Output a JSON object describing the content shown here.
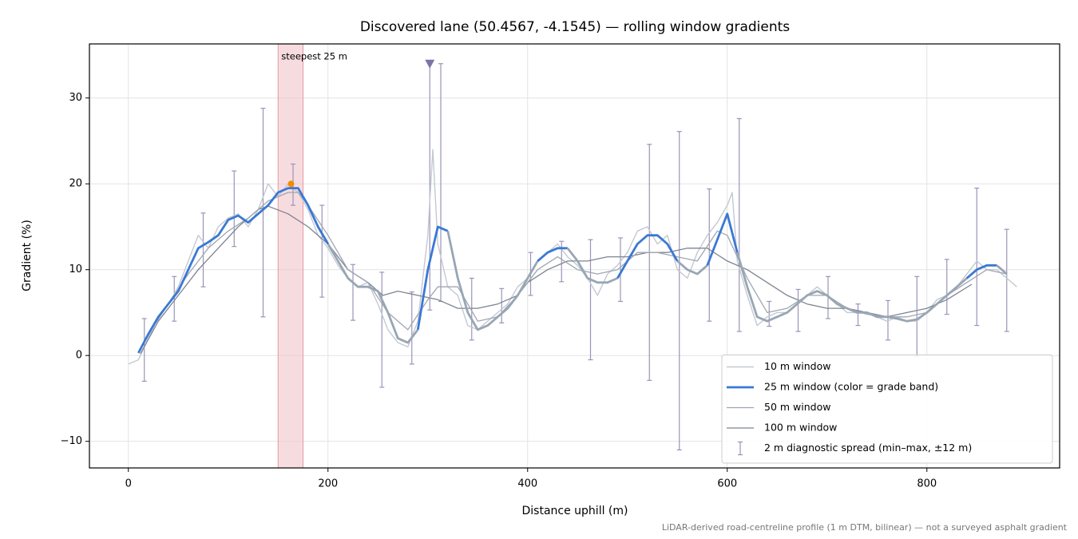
{
  "chart_data": {
    "type": "line",
    "title": "Discovered lane (50.4567, -4.1545) — rolling window gradients",
    "x_label": "Distance uphill (m)",
    "y_label": "Gradient (%)",
    "footnote": "LiDAR-derived road-centreline profile (1 m DTM, bilinear) — not a surveyed asphalt gradient",
    "xlim": [
      -39,
      933
    ],
    "ylim": [
      -13.1,
      36.3
    ],
    "xticks": [
      0,
      200,
      400,
      600,
      800
    ],
    "yticks": [
      {
        "value": -10,
        "label": "−10"
      },
      0,
      10,
      20,
      30
    ],
    "grid": true,
    "legend": "lower right",
    "highlight": {
      "xlim": [
        150,
        175
      ],
      "label": "steepest 25 m",
      "color": "#f2c4c9",
      "label_color": "#c0283a"
    },
    "steepest_point": {
      "x": 163,
      "y": 20,
      "color": "#f08c00"
    },
    "peak_marker": {
      "x": 302,
      "y": 34,
      "color": "#7e74a8"
    },
    "series": [
      {
        "name": "10 m window",
        "color": "#c3c9d2",
        "x": [
          0,
          10,
          20,
          30,
          40,
          50,
          60,
          70,
          80,
          90,
          100,
          110,
          120,
          130,
          140,
          150,
          160,
          170,
          180,
          190,
          200,
          210,
          220,
          230,
          240,
          250,
          260,
          270,
          280,
          290,
          300,
          305,
          310,
          320,
          330,
          340,
          350,
          360,
          370,
          380,
          390,
          400,
          410,
          420,
          430,
          440,
          450,
          460,
          470,
          480,
          490,
          500,
          510,
          520,
          530,
          540,
          550,
          560,
          570,
          580,
          590,
          600,
          605,
          610,
          620,
          630,
          640,
          650,
          660,
          670,
          680,
          690,
          700,
          710,
          720,
          730,
          740,
          750,
          760,
          770,
          780,
          790,
          800,
          810,
          820,
          830,
          840,
          850,
          860,
          870,
          880,
          890
        ],
        "values": [
          -1,
          -0.5,
          2,
          4.5,
          6,
          8,
          11,
          14,
          12.5,
          15,
          16,
          16.5,
          15,
          17,
          20,
          18.5,
          20,
          19,
          17,
          14,
          12.5,
          10.5,
          9,
          8,
          8.5,
          6,
          3,
          1.5,
          1,
          4,
          14,
          24,
          13,
          8,
          7,
          3.5,
          3,
          4,
          5,
          6,
          8,
          9,
          11,
          12,
          13,
          11.5,
          10.5,
          9,
          7,
          9.5,
          10.5,
          12,
          14.5,
          15,
          13,
          14,
          10,
          9,
          12,
          14,
          15.5,
          17.5,
          19,
          11,
          7,
          3.5,
          4.5,
          5,
          5,
          6,
          7,
          8,
          7,
          6,
          5,
          5,
          5,
          4.5,
          4,
          4.5,
          4,
          4,
          5,
          6.5,
          7,
          8,
          9.5,
          11,
          10,
          10,
          9,
          8
        ]
      },
      {
        "name": "25 m window (color = grade band)",
        "color": "#3a78d4",
        "x": [
          10,
          20,
          30,
          40,
          50,
          60,
          70,
          80,
          90,
          100,
          110,
          120,
          130,
          140,
          150,
          160,
          170,
          180,
          190,
          200,
          210,
          220,
          230,
          240,
          250,
          260,
          270,
          280,
          290,
          300,
          310,
          320,
          330,
          340,
          350,
          360,
          370,
          380,
          390,
          400,
          410,
          420,
          430,
          440,
          450,
          460,
          470,
          480,
          490,
          500,
          510,
          520,
          530,
          540,
          550,
          560,
          570,
          580,
          590,
          600,
          610,
          620,
          630,
          640,
          650,
          660,
          670,
          680,
          690,
          700,
          710,
          720,
          730,
          740,
          750,
          760,
          770,
          780,
          790,
          800,
          810,
          820,
          830,
          840,
          850,
          860,
          870,
          880
        ],
        "values": [
          0.3,
          2.5,
          4.5,
          6,
          7.5,
          10,
          12.5,
          13.2,
          14,
          15.8,
          16.3,
          15.5,
          16.5,
          17.5,
          19,
          19.5,
          19.5,
          17.5,
          15,
          13,
          11,
          9,
          8,
          8,
          7.5,
          5,
          2,
          1.5,
          3,
          10,
          15,
          14.5,
          9,
          5,
          3,
          3.5,
          4.5,
          5.5,
          7,
          9,
          11,
          12,
          12.5,
          12.5,
          11,
          9,
          8.5,
          8.5,
          9,
          11,
          13,
          14,
          14,
          13,
          11,
          10,
          9.5,
          10.5,
          13.5,
          16.5,
          12,
          8,
          4.5,
          4,
          4.5,
          5,
          6,
          7,
          7.5,
          7,
          6,
          5.5,
          5,
          5,
          4.5,
          4.5,
          4.3,
          4,
          4.2,
          5,
          6,
          7,
          8,
          9,
          10,
          10.5,
          10.5,
          9.5
        ],
        "colors": [
          "#3a78d4",
          "#3a78d4",
          "#3a78d4",
          "#3a78d4",
          "#3a78d4",
          "#3a78d4",
          "#3a78d4",
          "#3a78d4",
          "#3a78d4",
          "#3a78d4",
          "#3a78d4",
          "#3a78d4",
          "#3a78d4",
          "#3a78d4",
          "#3a78d4",
          "#3a78d4",
          "#3a78d4",
          "#3a78d4",
          "#3a78d4",
          "#3a78d4",
          "#98a6b4",
          "#98a6b4",
          "#98a6b4",
          "#98a6b4",
          "#98a6b4",
          "#98a6b4",
          "#98a6b4",
          "#98a6b4",
          "#98a6b4",
          "#3a78d4",
          "#3a78d4",
          "#3a78d4",
          "#98a6b4",
          "#98a6b4",
          "#98a6b4",
          "#98a6b4",
          "#98a6b4",
          "#98a6b4",
          "#98a6b4",
          "#98a6b4",
          "#98a6b4",
          "#3a78d4",
          "#3a78d4",
          "#3a78d4",
          "#98a6b4",
          "#98a6b4",
          "#98a6b4",
          "#98a6b4",
          "#98a6b4",
          "#3a78d4",
          "#3a78d4",
          "#3a78d4",
          "#3a78d4",
          "#3a78d4",
          "#3a78d4",
          "#98a6b4",
          "#98a6b4",
          "#98a6b4",
          "#3a78d4",
          "#3a78d4",
          "#3a78d4",
          "#98a6b4",
          "#98a6b4",
          "#98a6b4",
          "#98a6b4",
          "#98a6b4",
          "#98a6b4",
          "#98a6b4",
          "#98a6b4",
          "#98a6b4",
          "#98a6b4",
          "#98a6b4",
          "#98a6b4",
          "#98a6b4",
          "#98a6b4",
          "#98a6b4",
          "#98a6b4",
          "#98a6b4",
          "#98a6b4",
          "#98a6b4",
          "#98a6b4",
          "#98a6b4",
          "#98a6b4",
          "#98a6b4",
          "#3a78d4",
          "#3a78d4",
          "#3a78d4",
          "#98a6b4"
        ]
      },
      {
        "name": "50 m window",
        "color": "#a0a6b2",
        "x": [
          20,
          40,
          60,
          80,
          100,
          120,
          140,
          160,
          170,
          180,
          200,
          220,
          240,
          260,
          280,
          300,
          310,
          330,
          350,
          370,
          390,
          410,
          430,
          450,
          470,
          490,
          510,
          530,
          550,
          570,
          590,
          600,
          620,
          640,
          660,
          680,
          700,
          720,
          740,
          760,
          780,
          800,
          820,
          840,
          860,
          880
        ],
        "values": [
          2.5,
          6,
          9.5,
          12.5,
          14.5,
          16,
          18,
          19,
          19,
          17.5,
          14,
          10,
          8.5,
          5,
          3,
          6.5,
          8,
          8,
          4,
          4.5,
          7,
          10,
          11.5,
          10,
          9.5,
          10,
          12,
          12,
          11.5,
          11,
          14.5,
          14,
          9,
          5,
          5.5,
          7,
          7,
          5.5,
          4.8,
          4.5,
          4.5,
          5,
          7,
          8.5,
          10,
          9.5
        ]
      },
      {
        "name": "100 m window",
        "color": "#7d8491",
        "x": [
          12,
          30,
          50,
          70,
          90,
          110,
          130,
          140,
          160,
          180,
          200,
          220,
          240,
          255,
          270,
          290,
          310,
          330,
          350,
          370,
          390,
          400,
          420,
          440,
          460,
          480,
          500,
          520,
          540,
          560,
          580,
          600,
          620,
          640,
          660,
          680,
          700,
          720,
          740,
          760,
          780,
          800,
          820,
          845
        ],
        "values": [
          0.2,
          4,
          7,
          10,
          12.5,
          15,
          17,
          17.4,
          16.5,
          15,
          13,
          10,
          8.5,
          7,
          7.5,
          7,
          6.5,
          5.5,
          5.5,
          6,
          7,
          8.5,
          10,
          11,
          11,
          11.5,
          11.5,
          12,
          12,
          12.5,
          12.5,
          11,
          10,
          8.5,
          7,
          6,
          5.5,
          5.5,
          5,
          4.5,
          5,
          5.5,
          6.5,
          8.3
        ]
      }
    ],
    "errorbars": {
      "name": "2 m diagnostic spread (min–max, ±12 m)",
      "color": "#9a94b8",
      "x": [
        16,
        46,
        75,
        106,
        135,
        165,
        194,
        225,
        254,
        284,
        302,
        313,
        344,
        374,
        403,
        434,
        463,
        493,
        522,
        552,
        582,
        612,
        642,
        671,
        701,
        731,
        761,
        790,
        820,
        850,
        880
      ],
      "low": [
        -3,
        4,
        8,
        12.7,
        4.5,
        17.5,
        6.8,
        4.1,
        -3.7,
        -1,
        5.3,
        6.3,
        1.8,
        3.8,
        7,
        8.6,
        -0.5,
        6.3,
        -2.9,
        -11,
        4,
        2.8,
        3.4,
        2.8,
        4.3,
        3.5,
        1.8,
        -0.1,
        4.8,
        3.5,
        2.8
      ],
      "high": [
        4.3,
        9.2,
        16.6,
        21.5,
        28.8,
        22.3,
        17.5,
        10.6,
        9.7,
        7.4,
        34,
        34,
        9,
        7.8,
        12,
        13.3,
        13.5,
        13.7,
        24.6,
        26.1,
        19.4,
        27.6,
        6.3,
        7.7,
        9.2,
        6,
        6.4,
        9.2,
        11.2,
        19.5,
        14.7
      ]
    }
  }
}
